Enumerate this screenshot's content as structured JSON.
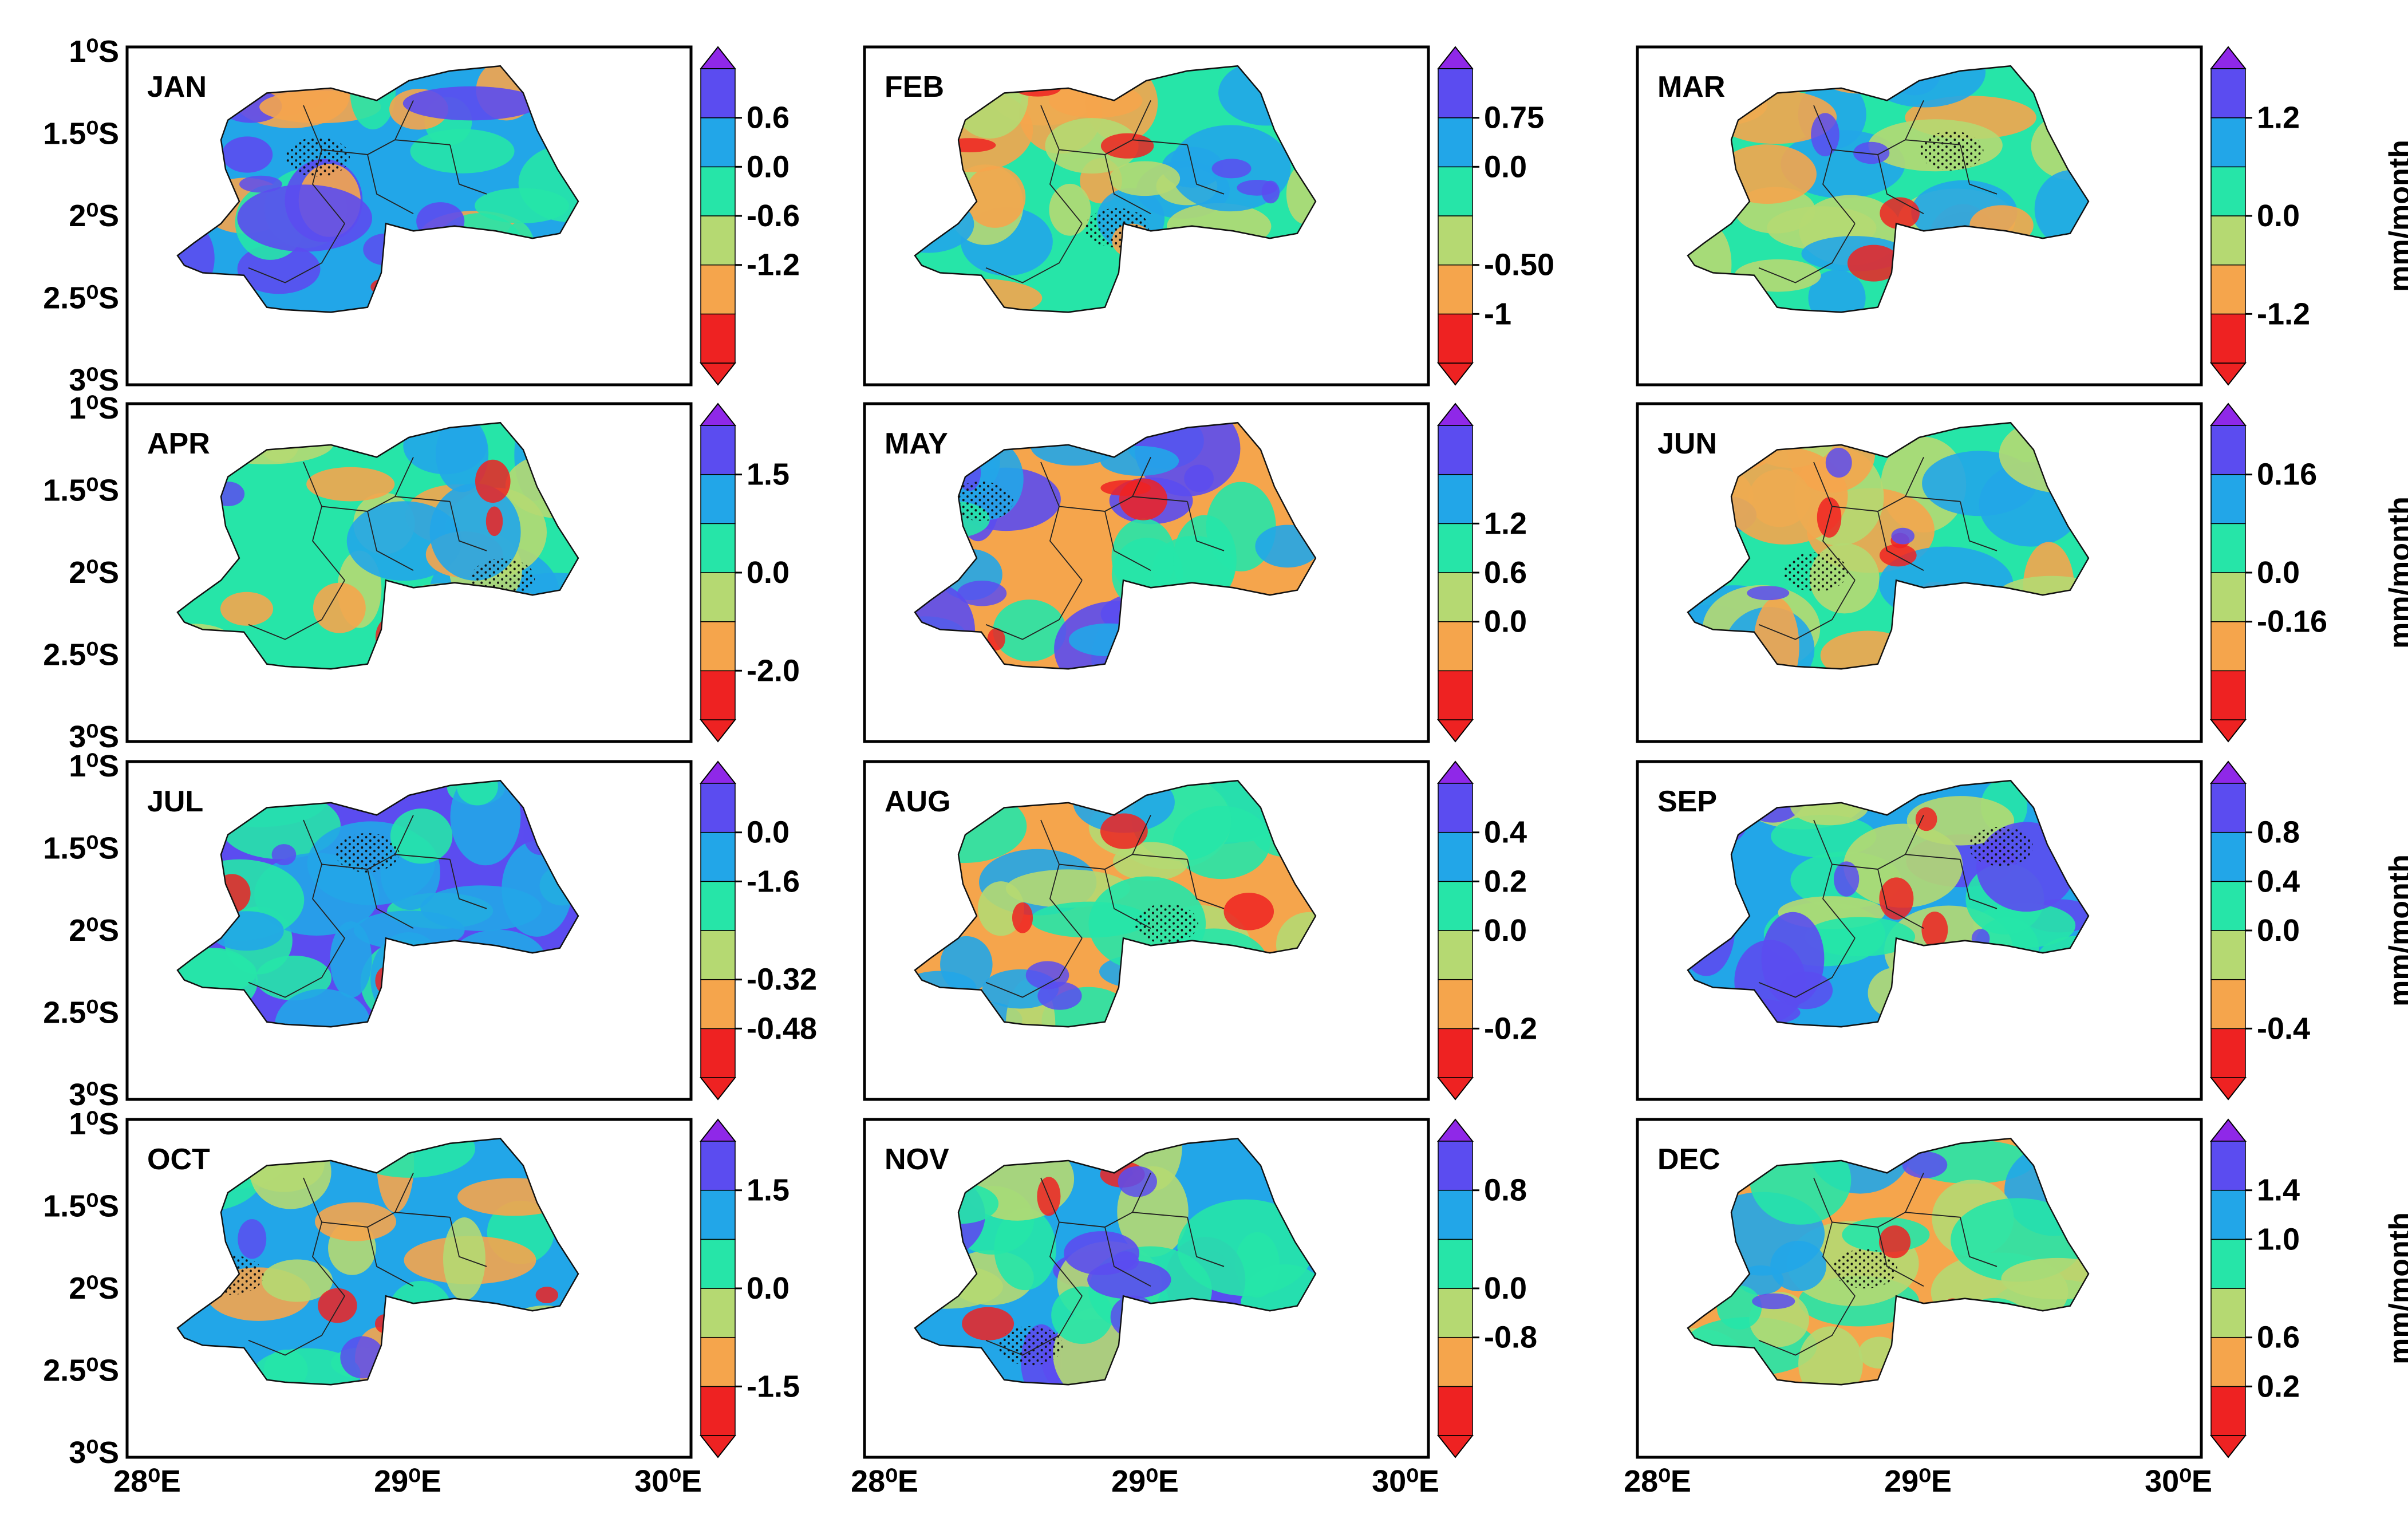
{
  "chart_data": {
    "type": "heatmap",
    "title": "",
    "colors": [
      "#ee2222",
      "#f5a54c",
      "#b5d972",
      "#26e5a8",
      "#22a6e8",
      "#5b4cf0",
      "#8f28e8"
    ],
    "ylabel_units": "mm/month",
    "y_ticks": [
      "1⁰S",
      "1.5⁰S",
      "2⁰S",
      "2.5⁰S",
      "3⁰S"
    ],
    "x_ticks": [
      "28⁰E",
      "29⁰E",
      "30⁰E"
    ],
    "panels": [
      {
        "month": "JAN",
        "ticks": [
          "0.6",
          "0.0",
          "-0.6",
          "-1.2"
        ],
        "tick_bands": [
          5,
          4,
          3,
          2
        ],
        "unit_label": "",
        "dominant": [
          4,
          5,
          3,
          1
        ]
      },
      {
        "month": "FEB",
        "ticks": [
          "0.75",
          "0.0",
          "-0.50",
          "-1"
        ],
        "tick_bands": [
          5,
          4,
          2,
          1
        ],
        "unit_label": "",
        "dominant": [
          3,
          2,
          1,
          4
        ]
      },
      {
        "month": "MAR",
        "ticks": [
          "1.2",
          "0.0",
          "-1.2"
        ],
        "tick_bands": [
          5,
          3,
          1
        ],
        "unit_label": "mm/month",
        "dominant": [
          3,
          4,
          2,
          1
        ]
      },
      {
        "month": "APR",
        "ticks": [
          "1.5",
          "0.0",
          "-2.0"
        ],
        "tick_bands": [
          5,
          3,
          1
        ],
        "unit_label": "",
        "dominant": [
          3,
          2,
          4,
          1
        ]
      },
      {
        "month": "MAY",
        "ticks": [
          "1.2",
          "0.6",
          "0.0"
        ],
        "tick_bands": [
          4,
          3,
          2
        ],
        "unit_label": "",
        "dominant": [
          1,
          3,
          4,
          5
        ]
      },
      {
        "month": "JUN",
        "ticks": [
          "0.16",
          "0.0",
          "-0.16"
        ],
        "tick_bands": [
          5,
          3,
          2
        ],
        "unit_label": "mm/month",
        "dominant": [
          3,
          2,
          1,
          4
        ]
      },
      {
        "month": "JUL",
        "ticks": [
          "0.0",
          "-1.6",
          "-0.32",
          "-0.48"
        ],
        "tick_bands": [
          5,
          4,
          2,
          1
        ],
        "unit_label": "",
        "dominant": [
          5,
          3,
          4
        ]
      },
      {
        "month": "AUG",
        "ticks": [
          "0.4",
          "0.2",
          "0.0",
          "-0.2"
        ],
        "tick_bands": [
          5,
          4,
          3,
          1
        ],
        "unit_label": "",
        "dominant": [
          1,
          2,
          3,
          4
        ]
      },
      {
        "month": "SEP",
        "ticks": [
          "0.8",
          "0.4",
          "0.0",
          "-0.4"
        ],
        "tick_bands": [
          5,
          4,
          3,
          1
        ],
        "unit_label": "mm/month",
        "dominant": [
          4,
          3,
          5,
          2
        ]
      },
      {
        "month": "OCT",
        "ticks": [
          "1.5",
          "0.0",
          "-1.5"
        ],
        "tick_bands": [
          5,
          3,
          1
        ],
        "unit_label": "",
        "dominant": [
          4,
          3,
          2,
          1
        ]
      },
      {
        "month": "NOV",
        "ticks": [
          "0.8",
          "0.0",
          "-0.8"
        ],
        "tick_bands": [
          5,
          3,
          2
        ],
        "unit_label": "",
        "dominant": [
          4,
          3,
          2,
          5
        ]
      },
      {
        "month": "DEC",
        "ticks": [
          "1.4",
          "1.0",
          "0.6",
          "0.2"
        ],
        "tick_bands": [
          5,
          4,
          2,
          1
        ],
        "unit_label": "mm/month",
        "dominant": [
          1,
          2,
          3,
          4
        ]
      }
    ]
  }
}
